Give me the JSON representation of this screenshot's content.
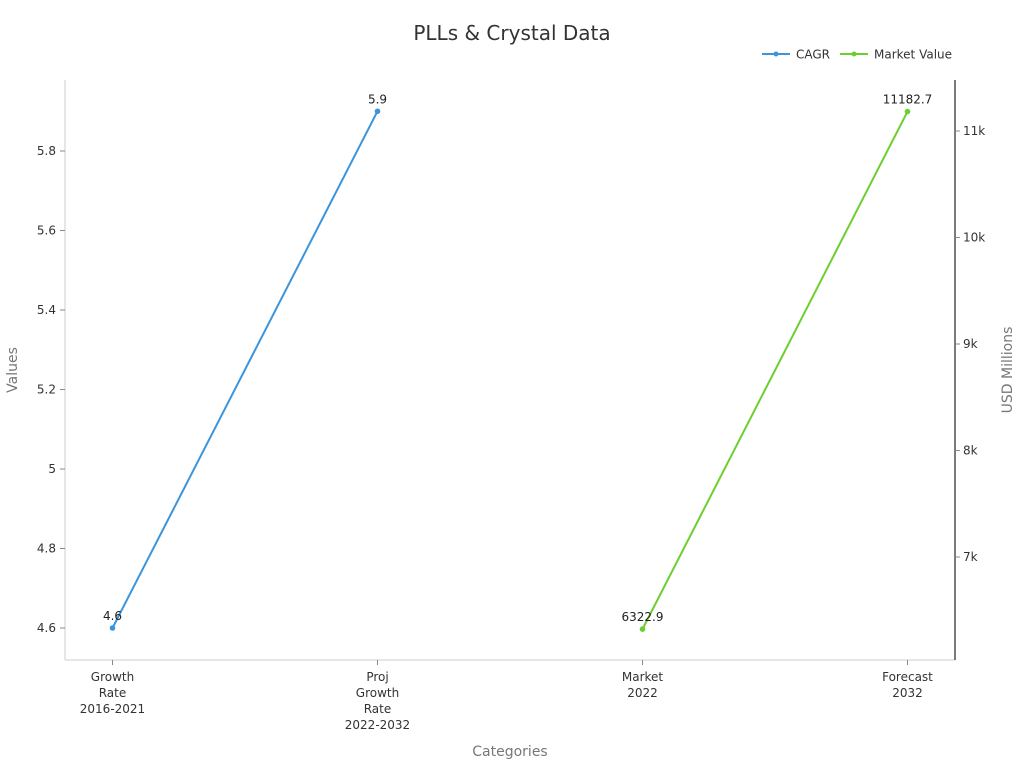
{
  "chart_data": {
    "type": "line",
    "title": "PLLs & Crystal Data",
    "xlabel": "Categories",
    "ylabel": "Values",
    "y2label": "USD Millions",
    "categories": [
      [
        "Growth",
        "Rate",
        "2016-2021"
      ],
      [
        "Proj",
        "Growth",
        "Rate",
        "2022-2032"
      ],
      [
        "Market",
        "2022"
      ],
      [
        "Forecast",
        "2032"
      ]
    ],
    "series": [
      {
        "name": "CAGR",
        "axis": "left",
        "color": "#3a95dc",
        "points": [
          {
            "x": 0,
            "y": 4.6,
            "label": "4.6"
          },
          {
            "x": 1,
            "y": 5.9,
            "label": "5.9"
          }
        ]
      },
      {
        "name": "Market Value",
        "axis": "right",
        "color": "#6ccf2f",
        "points": [
          {
            "x": 2,
            "y": 6322.9,
            "label": "6322.9"
          },
          {
            "x": 3,
            "y": 11182.7,
            "label": "11182.7"
          }
        ]
      }
    ],
    "y_ticks": [
      "4.6",
      "4.8",
      "5",
      "5.2",
      "5.4",
      "5.6",
      "5.8"
    ],
    "y_tick_values": [
      4.6,
      4.8,
      5.0,
      5.2,
      5.4,
      5.6,
      5.8
    ],
    "y2_ticks": [
      "7k",
      "8k",
      "9k",
      "10k",
      "11k"
    ],
    "y2_tick_values": [
      7000,
      8000,
      9000,
      10000,
      11000
    ],
    "ylim": [
      4.52,
      5.98
    ],
    "y2lim": [
      6000,
      11500
    ],
    "grid": false,
    "legend_position": "top-right"
  }
}
